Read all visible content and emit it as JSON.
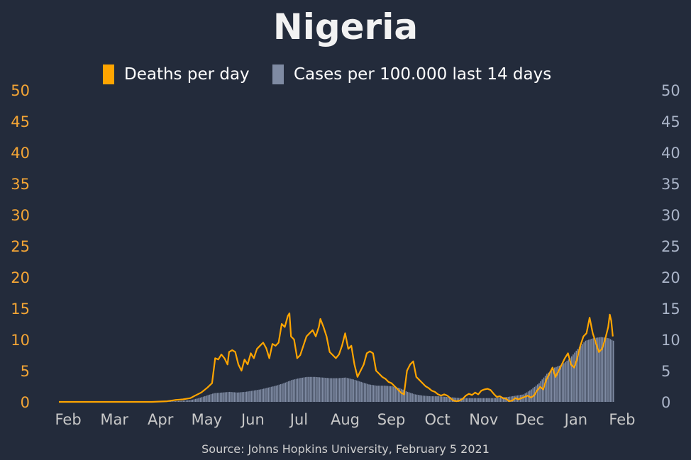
{
  "chart_data": {
    "type": "bar+line",
    "title": "Nigeria",
    "legend": [
      {
        "label": "Deaths per day",
        "color": "#ffa500",
        "marker": "orange-swatch"
      },
      {
        "label": "Cases per 100.000 last 14 days",
        "color": "#7f8ba3",
        "marker": "slate-swatch"
      }
    ],
    "legend_position": "top-center",
    "source": "Source: Johns Hopkins University, February 5 2021",
    "y_left": {
      "min": 0,
      "max": 50,
      "ticks": [
        "0",
        "5",
        "10",
        "15",
        "20",
        "25",
        "30",
        "35",
        "40",
        "45",
        "50"
      ],
      "color": "#f4a535"
    },
    "y_right": {
      "min": 0,
      "max": 50,
      "ticks": [
        "0",
        "5",
        "10",
        "15",
        "20",
        "25",
        "30",
        "35",
        "40",
        "45",
        "50"
      ],
      "color": "#aab4c8"
    },
    "x_ticks": [
      "Feb",
      "Mar",
      "Apr",
      "May",
      "Jun",
      "Jul",
      "Aug",
      "Sep",
      "Oct",
      "Nov",
      "Dec",
      "Jan",
      "Feb"
    ],
    "x_range_days": [
      0,
      370
    ],
    "grid": false,
    "series": [
      {
        "name": "Deaths per day",
        "kind": "line",
        "color": "#ffa500",
        "points": [
          [
            0,
            0
          ],
          [
            60,
            0
          ],
          [
            70,
            0.1
          ],
          [
            75,
            0.3
          ],
          [
            80,
            0.4
          ],
          [
            85,
            0.6
          ],
          [
            88,
            1.0
          ],
          [
            92,
            1.5
          ],
          [
            96,
            2.3
          ],
          [
            99,
            3.0
          ],
          [
            100,
            5.0
          ],
          [
            101,
            7.0
          ],
          [
            103,
            6.8
          ],
          [
            105,
            7.6
          ],
          [
            107,
            7.0
          ],
          [
            109,
            6.0
          ],
          [
            110,
            8.0
          ],
          [
            112,
            8.3
          ],
          [
            114,
            8.0
          ],
          [
            116,
            6.0
          ],
          [
            118,
            5.0
          ],
          [
            120,
            6.8
          ],
          [
            122,
            6.0
          ],
          [
            124,
            7.8
          ],
          [
            126,
            7.0
          ],
          [
            128,
            8.5
          ],
          [
            130,
            9.0
          ],
          [
            132,
            9.5
          ],
          [
            134,
            8.6
          ],
          [
            136,
            7.0
          ],
          [
            138,
            9.3
          ],
          [
            140,
            9.0
          ],
          [
            142,
            9.5
          ],
          [
            144,
            12.5
          ],
          [
            146,
            12.0
          ],
          [
            148,
            13.8
          ],
          [
            149,
            14.2
          ],
          [
            150,
            10.5
          ],
          [
            152,
            10.0
          ],
          [
            154,
            7.0
          ],
          [
            156,
            7.5
          ],
          [
            158,
            9.0
          ],
          [
            160,
            10.5
          ],
          [
            162,
            11.0
          ],
          [
            164,
            11.5
          ],
          [
            166,
            10.5
          ],
          [
            168,
            12.0
          ],
          [
            169,
            13.3
          ],
          [
            171,
            12.0
          ],
          [
            173,
            10.5
          ],
          [
            175,
            8.0
          ],
          [
            177,
            7.5
          ],
          [
            179,
            7.0
          ],
          [
            181,
            7.6
          ],
          [
            183,
            9.0
          ],
          [
            185,
            11.0
          ],
          [
            187,
            8.5
          ],
          [
            189,
            9.0
          ],
          [
            191,
            6.0
          ],
          [
            193,
            4.0
          ],
          [
            195,
            5.0
          ],
          [
            197,
            6.0
          ],
          [
            199,
            7.8
          ],
          [
            201,
            8.1
          ],
          [
            203,
            7.8
          ],
          [
            205,
            5.0
          ],
          [
            207,
            4.5
          ],
          [
            209,
            4.0
          ],
          [
            211,
            3.7
          ],
          [
            213,
            3.2
          ],
          [
            215,
            3.0
          ],
          [
            217,
            2.5
          ],
          [
            219,
            2.0
          ],
          [
            221,
            1.5
          ],
          [
            223,
            1.2
          ],
          [
            225,
            5.0
          ],
          [
            227,
            6.0
          ],
          [
            229,
            6.5
          ],
          [
            231,
            4.0
          ],
          [
            233,
            3.5
          ],
          [
            235,
            3.0
          ],
          [
            237,
            2.5
          ],
          [
            239,
            2.2
          ],
          [
            241,
            1.8
          ],
          [
            243,
            1.6
          ],
          [
            245,
            1.2
          ],
          [
            247,
            1.0
          ],
          [
            249,
            1.2
          ],
          [
            251,
            1.0
          ],
          [
            253,
            0.6
          ],
          [
            255,
            0.2
          ],
          [
            257,
            0.1
          ],
          [
            259,
            0.2
          ],
          [
            261,
            0.5
          ],
          [
            263,
            1.0
          ],
          [
            265,
            1.3
          ],
          [
            267,
            1.1
          ],
          [
            269,
            1.5
          ],
          [
            271,
            1.2
          ],
          [
            273,
            1.8
          ],
          [
            275,
            2.0
          ],
          [
            277,
            2.1
          ],
          [
            279,
            1.9
          ],
          [
            281,
            1.3
          ],
          [
            283,
            0.8
          ],
          [
            285,
            0.9
          ],
          [
            287,
            0.6
          ],
          [
            289,
            0.5
          ],
          [
            291,
            0.1
          ],
          [
            293,
            0.2
          ],
          [
            295,
            0.6
          ],
          [
            297,
            0.4
          ],
          [
            299,
            0.6
          ],
          [
            301,
            0.8
          ],
          [
            303,
            1.0
          ],
          [
            305,
            0.7
          ],
          [
            307,
            1.0
          ],
          [
            309,
            1.8
          ],
          [
            311,
            2.4
          ],
          [
            313,
            2.0
          ],
          [
            315,
            3.5
          ],
          [
            317,
            4.5
          ],
          [
            319,
            5.5
          ],
          [
            321,
            4.0
          ],
          [
            323,
            5.0
          ],
          [
            325,
            6.0
          ],
          [
            327,
            7.0
          ],
          [
            329,
            7.8
          ],
          [
            331,
            6.0
          ],
          [
            333,
            5.5
          ],
          [
            335,
            7.0
          ],
          [
            337,
            9.0
          ],
          [
            339,
            10.5
          ],
          [
            341,
            11.0
          ],
          [
            343,
            13.5
          ],
          [
            345,
            11.0
          ],
          [
            347,
            9.5
          ],
          [
            349,
            8.0
          ],
          [
            351,
            8.5
          ],
          [
            353,
            10.0
          ],
          [
            355,
            12.0
          ],
          [
            356,
            14.0
          ],
          [
            357,
            13.0
          ],
          [
            358,
            10.5
          ]
        ]
      },
      {
        "name": "Cases per 100.000 last 14 days",
        "kind": "bar",
        "color": "#7f8ba3",
        "points": [
          [
            0,
            0
          ],
          [
            55,
            0
          ],
          [
            65,
            0.05
          ],
          [
            75,
            0.1
          ],
          [
            85,
            0.3
          ],
          [
            90,
            0.6
          ],
          [
            95,
            1.0
          ],
          [
            100,
            1.4
          ],
          [
            105,
            1.5
          ],
          [
            110,
            1.6
          ],
          [
            115,
            1.5
          ],
          [
            120,
            1.6
          ],
          [
            125,
            1.8
          ],
          [
            130,
            2.0
          ],
          [
            135,
            2.3
          ],
          [
            140,
            2.6
          ],
          [
            145,
            3.0
          ],
          [
            150,
            3.5
          ],
          [
            155,
            3.8
          ],
          [
            160,
            4.0
          ],
          [
            165,
            4.0
          ],
          [
            170,
            3.9
          ],
          [
            175,
            3.8
          ],
          [
            180,
            3.8
          ],
          [
            185,
            3.9
          ],
          [
            190,
            3.6
          ],
          [
            195,
            3.2
          ],
          [
            200,
            2.8
          ],
          [
            205,
            2.6
          ],
          [
            210,
            2.6
          ],
          [
            215,
            2.5
          ],
          [
            220,
            2.2
          ],
          [
            225,
            1.6
          ],
          [
            230,
            1.2
          ],
          [
            235,
            1.0
          ],
          [
            240,
            0.9
          ],
          [
            245,
            0.9
          ],
          [
            250,
            0.8
          ],
          [
            255,
            0.7
          ],
          [
            260,
            0.6
          ],
          [
            265,
            0.6
          ],
          [
            270,
            0.6
          ],
          [
            275,
            0.6
          ],
          [
            280,
            0.6
          ],
          [
            285,
            0.7
          ],
          [
            290,
            0.8
          ],
          [
            295,
            1.0
          ],
          [
            300,
            1.2
          ],
          [
            305,
            2.0
          ],
          [
            310,
            3.0
          ],
          [
            315,
            4.5
          ],
          [
            320,
            5.5
          ],
          [
            325,
            6.0
          ],
          [
            330,
            7.0
          ],
          [
            335,
            8.5
          ],
          [
            340,
            9.8
          ],
          [
            345,
            10.2
          ],
          [
            350,
            10.4
          ],
          [
            355,
            10.2
          ],
          [
            358,
            9.8
          ]
        ]
      }
    ]
  }
}
